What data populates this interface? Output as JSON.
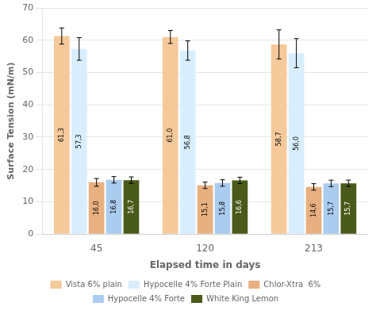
{
  "chart_data": {
    "type": "bar",
    "categories": [
      "45",
      "120",
      "213"
    ],
    "series": [
      {
        "name": "Vista 6% plain",
        "color": "#F5C99A",
        "values": [
          61.3,
          61.0,
          58.7
        ],
        "errors": [
          2.5,
          2.0,
          4.5
        ],
        "value_labels": [
          "61,3",
          "61,0",
          "58,7"
        ]
      },
      {
        "name": "Hypocelle 4% Forte Plain",
        "color": "#D8EEFF",
        "values": [
          57.3,
          56.8,
          56.0
        ],
        "errors": [
          3.5,
          3.0,
          4.5
        ],
        "value_labels": [
          "57,3",
          "56,8",
          "56,0"
        ]
      },
      {
        "name": "Chlor-Xtra  6%",
        "color": "#E8B080",
        "values": [
          16.0,
          15.1,
          14.6
        ],
        "errors": [
          1.2,
          1.0,
          1.0
        ],
        "value_labels": [
          "16,0",
          "15,1",
          "14,6"
        ]
      },
      {
        "name": "Hypocelle 4% Forte",
        "color": "#AACCEE",
        "values": [
          16.8,
          15.8,
          15.7
        ],
        "errors": [
          1.0,
          1.0,
          1.0
        ],
        "value_labels": [
          "16,8",
          "15,8",
          "15,7"
        ]
      },
      {
        "name": "White King Lemon",
        "color": "#4A5A1A",
        "values": [
          16.7,
          16.6,
          15.7
        ],
        "errors": [
          1.0,
          1.0,
          1.0
        ],
        "value_labels": [
          "16,7",
          "16,6",
          "15,7"
        ]
      }
    ],
    "xlabel": "Elapsed time in days",
    "ylabel": "Surface Tension (mN/m)",
    "ylim": [
      0,
      70
    ],
    "yticks": [
      0,
      10,
      20,
      30,
      40,
      50,
      60,
      70
    ],
    "grid": true,
    "legend": "bottom",
    "data_labels": true
  }
}
